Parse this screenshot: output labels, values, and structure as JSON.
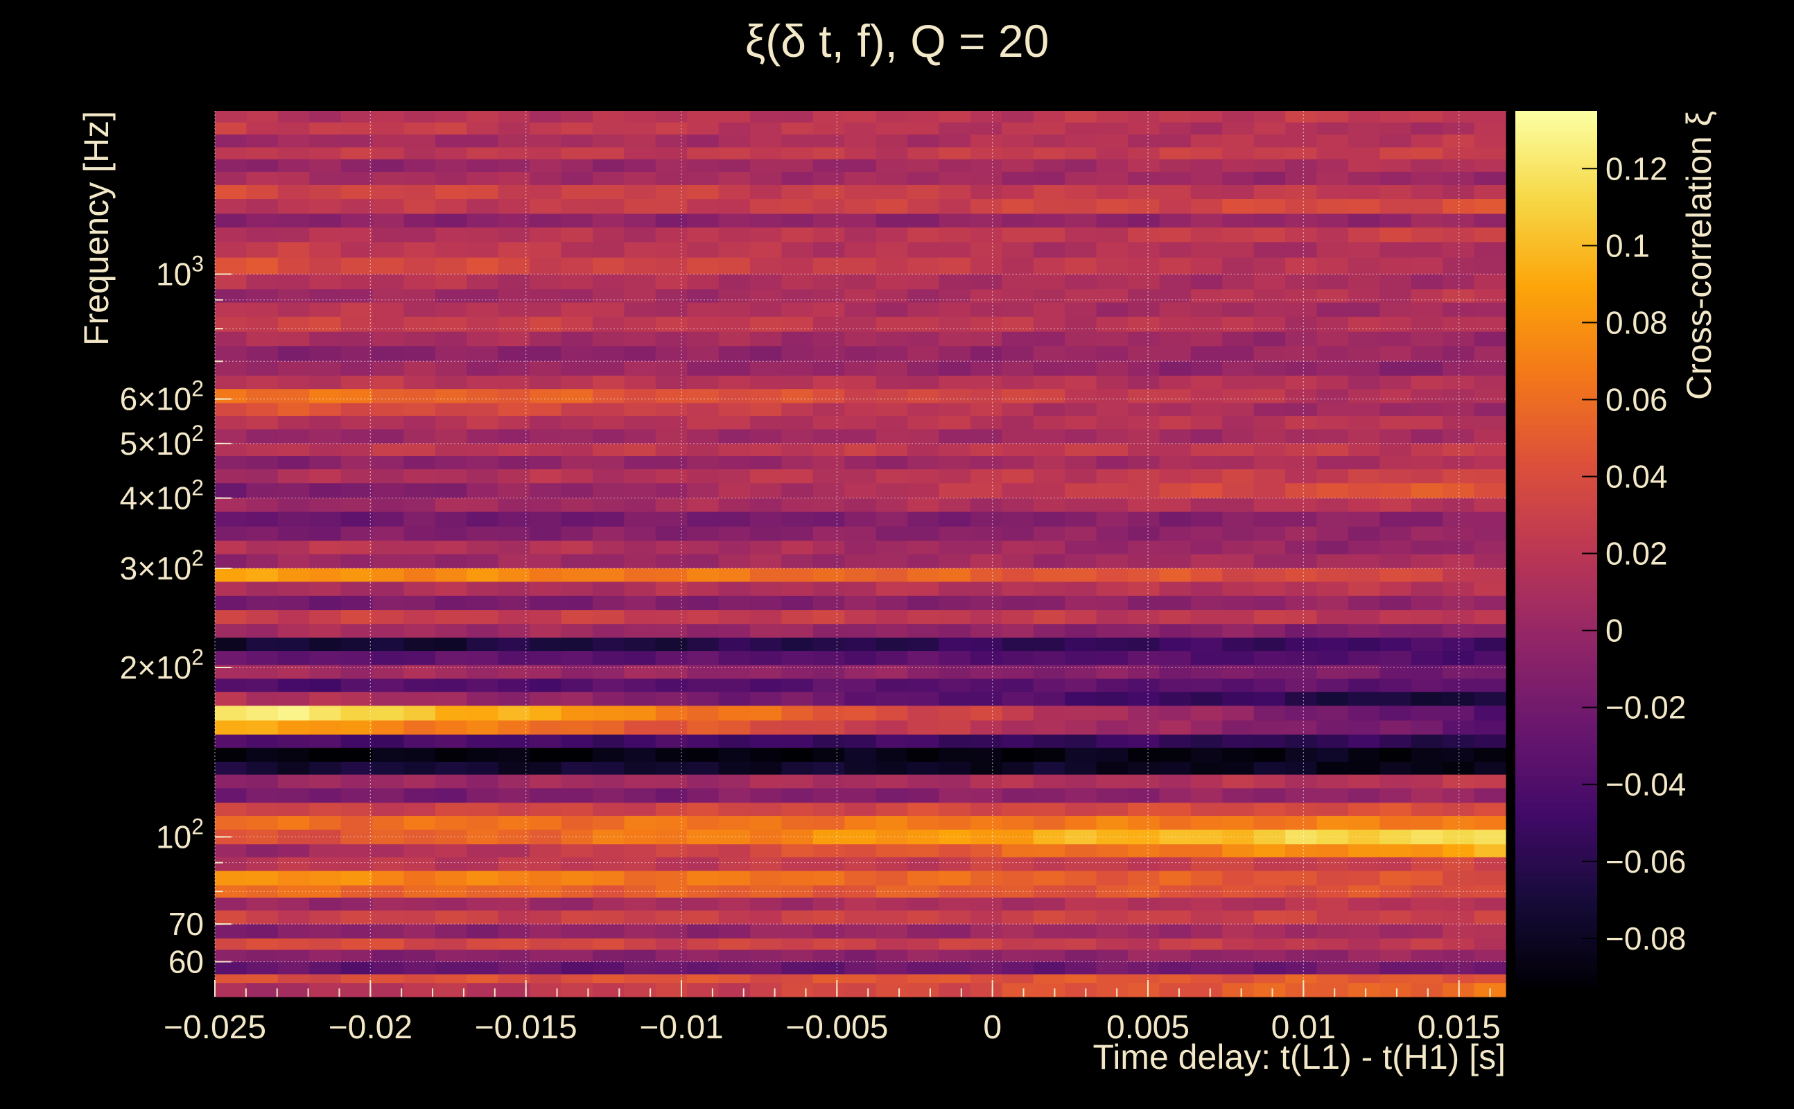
{
  "chart_data": {
    "type": "heatmap",
    "title": "ξ(δ t, f), Q = 20",
    "xlabel": "Time delay: t(L1) - t(H1) [s]",
    "ylabel": "Frequency [Hz]",
    "colorbar_label": "Cross-correlation ξ",
    "xlim": [
      -0.025,
      0.0165
    ],
    "ylim_hz": [
      52,
      1950
    ],
    "y_scale": "log",
    "z_range": [
      -0.093,
      0.135
    ],
    "grid": true,
    "x_ticks": [
      {
        "value": -0.025,
        "label": "−0.025"
      },
      {
        "value": -0.02,
        "label": "−0.02"
      },
      {
        "value": -0.015,
        "label": "−0.015"
      },
      {
        "value": -0.01,
        "label": "−0.01"
      },
      {
        "value": -0.005,
        "label": "−0.005"
      },
      {
        "value": 0,
        "label": "0"
      },
      {
        "value": 0.005,
        "label": "0.005"
      },
      {
        "value": 0.01,
        "label": "0.01"
      },
      {
        "value": 0.015,
        "label": "0.015"
      }
    ],
    "y_ticks": [
      {
        "value": 60,
        "base": "60",
        "exp": ""
      },
      {
        "value": 70,
        "base": "70",
        "exp": ""
      },
      {
        "value": 100,
        "base": "10",
        "exp": "2"
      },
      {
        "value": 200,
        "base": "2×10",
        "exp": "2"
      },
      {
        "value": 300,
        "base": "3×10",
        "exp": "2"
      },
      {
        "value": 400,
        "base": "4×10",
        "exp": "2"
      },
      {
        "value": 500,
        "base": "5×10",
        "exp": "2"
      },
      {
        "value": 600,
        "base": "6×10",
        "exp": "2"
      },
      {
        "value": 1000,
        "base": "10",
        "exp": "3"
      }
    ],
    "colorbar_ticks": [
      {
        "value": 0.12,
        "label": "0.12"
      },
      {
        "value": 0.1,
        "label": "0.1"
      },
      {
        "value": 0.08,
        "label": "0.08"
      },
      {
        "value": 0.06,
        "label": "0.06"
      },
      {
        "value": 0.04,
        "label": "0.04"
      },
      {
        "value": 0.02,
        "label": "0.02"
      },
      {
        "value": 0,
        "label": "0"
      },
      {
        "value": -0.02,
        "label": "−0.02"
      },
      {
        "value": -0.04,
        "label": "−0.04"
      },
      {
        "value": -0.06,
        "label": "−0.06"
      },
      {
        "value": -0.08,
        "label": "−0.08"
      }
    ],
    "n_time_bins": 41,
    "row_profiles": [
      {
        "f_low": 1860,
        "f_high": 1950,
        "start": 0.015,
        "end": 0.025
      },
      {
        "f_low": 1770,
        "f_high": 1860,
        "start": 0.028,
        "end": 0.012
      },
      {
        "f_low": 1680,
        "f_high": 1770,
        "start": 0.005,
        "end": 0.02
      },
      {
        "f_low": 1600,
        "f_high": 1680,
        "start": 0.022,
        "end": 0.028
      },
      {
        "f_low": 1520,
        "f_high": 1600,
        "start": -0.005,
        "end": 0.015
      },
      {
        "f_low": 1440,
        "f_high": 1520,
        "start": 0.01,
        "end": 0.002
      },
      {
        "f_low": 1360,
        "f_high": 1440,
        "start": 0.035,
        "end": 0.02
      },
      {
        "f_low": 1280,
        "f_high": 1360,
        "start": 0.02,
        "end": 0.04
      },
      {
        "f_low": 1210,
        "f_high": 1280,
        "start": -0.008,
        "end": 0.0
      },
      {
        "f_low": 1140,
        "f_high": 1210,
        "start": 0.012,
        "end": 0.03
      },
      {
        "f_low": 1070,
        "f_high": 1140,
        "start": 0.025,
        "end": 0.01
      },
      {
        "f_low": 1000,
        "f_high": 1070,
        "start": 0.04,
        "end": 0.015
      },
      {
        "f_low": 940,
        "f_high": 1000,
        "start": 0.018,
        "end": 0.008
      },
      {
        "f_low": 890,
        "f_high": 940,
        "start": 0.0,
        "end": 0.02
      },
      {
        "f_low": 840,
        "f_high": 890,
        "start": 0.02,
        "end": 0.005
      },
      {
        "f_low": 790,
        "f_high": 840,
        "start": 0.03,
        "end": 0.015
      },
      {
        "f_low": 745,
        "f_high": 790,
        "start": 0.01,
        "end": 0.002
      },
      {
        "f_low": 700,
        "f_high": 745,
        "start": -0.01,
        "end": 0.005
      },
      {
        "f_low": 660,
        "f_high": 700,
        "start": 0.005,
        "end": -0.005
      },
      {
        "f_low": 625,
        "f_high": 660,
        "start": 0.02,
        "end": 0.015
      },
      {
        "f_low": 590,
        "f_high": 625,
        "start": 0.065,
        "end": 0.01
      },
      {
        "f_low": 560,
        "f_high": 590,
        "start": 0.045,
        "end": 0.0
      },
      {
        "f_low": 530,
        "f_high": 560,
        "start": 0.015,
        "end": 0.02
      },
      {
        "f_low": 500,
        "f_high": 530,
        "start": 0.0,
        "end": 0.01
      },
      {
        "f_low": 475,
        "f_high": 500,
        "start": 0.02,
        "end": 0.025
      },
      {
        "f_low": 450,
        "f_high": 475,
        "start": -0.01,
        "end": 0.015
      },
      {
        "f_low": 425,
        "f_high": 450,
        "start": 0.01,
        "end": 0.03
      },
      {
        "f_low": 400,
        "f_high": 425,
        "start": -0.02,
        "end": 0.05
      },
      {
        "f_low": 378,
        "f_high": 400,
        "start": 0.0,
        "end": 0.02
      },
      {
        "f_low": 356,
        "f_high": 378,
        "start": -0.025,
        "end": -0.005
      },
      {
        "f_low": 336,
        "f_high": 356,
        "start": -0.015,
        "end": 0.0
      },
      {
        "f_low": 318,
        "f_high": 336,
        "start": 0.02,
        "end": -0.005
      },
      {
        "f_low": 300,
        "f_high": 318,
        "start": 0.0,
        "end": 0.01
      },
      {
        "f_low": 284,
        "f_high": 300,
        "start": 0.085,
        "end": 0.03
      },
      {
        "f_low": 268,
        "f_high": 284,
        "start": 0.01,
        "end": 0.02
      },
      {
        "f_low": 253,
        "f_high": 268,
        "start": -0.02,
        "end": 0.0
      },
      {
        "f_low": 239,
        "f_high": 253,
        "start": 0.03,
        "end": 0.02
      },
      {
        "f_low": 226,
        "f_high": 239,
        "start": 0.01,
        "end": -0.015
      },
      {
        "f_low": 214,
        "f_high": 226,
        "start": -0.075,
        "end": -0.045
      },
      {
        "f_low": 202,
        "f_high": 214,
        "start": -0.03,
        "end": -0.04
      },
      {
        "f_low": 191,
        "f_high": 202,
        "start": 0.01,
        "end": -0.02
      },
      {
        "f_low": 181,
        "f_high": 191,
        "start": -0.04,
        "end": -0.03
      },
      {
        "f_low": 171,
        "f_high": 181,
        "start": 0.02,
        "end": -0.075
      },
      {
        "f_low": 161,
        "f_high": 171,
        "start": 0.13,
        "end": -0.04
      },
      {
        "f_low": 152,
        "f_high": 161,
        "start": 0.09,
        "end": -0.03
      },
      {
        "f_low": 144,
        "f_high": 152,
        "start": -0.04,
        "end": -0.06
      },
      {
        "f_low": 136,
        "f_high": 144,
        "start": -0.09,
        "end": -0.085
      },
      {
        "f_low": 129,
        "f_high": 136,
        "start": -0.07,
        "end": -0.085
      },
      {
        "f_low": 122,
        "f_high": 129,
        "start": 0.0,
        "end": 0.02
      },
      {
        "f_low": 115,
        "f_high": 122,
        "start": -0.02,
        "end": 0.0
      },
      {
        "f_low": 109,
        "f_high": 115,
        "start": 0.03,
        "end": 0.04
      },
      {
        "f_low": 103,
        "f_high": 109,
        "start": 0.06,
        "end": 0.07
      },
      {
        "f_low": 97,
        "f_high": 103,
        "start": 0.04,
        "end": 0.12
      },
      {
        "f_low": 92,
        "f_high": 97,
        "start": 0.0,
        "end": 0.09
      },
      {
        "f_low": 87,
        "f_high": 92,
        "start": 0.02,
        "end": 0.03
      },
      {
        "f_low": 82,
        "f_high": 87,
        "start": 0.08,
        "end": 0.04
      },
      {
        "f_low": 78,
        "f_high": 82,
        "start": 0.06,
        "end": 0.04
      },
      {
        "f_low": 74,
        "f_high": 78,
        "start": 0.0,
        "end": 0.02
      },
      {
        "f_low": 70,
        "f_high": 74,
        "start": 0.03,
        "end": 0.03
      },
      {
        "f_low": 66,
        "f_high": 70,
        "start": -0.01,
        "end": 0.01
      },
      {
        "f_low": 63,
        "f_high": 66,
        "start": 0.04,
        "end": 0.02
      },
      {
        "f_low": 60,
        "f_high": 63,
        "start": -0.01,
        "end": 0.0
      },
      {
        "f_low": 57,
        "f_high": 60,
        "start": -0.03,
        "end": -0.02
      },
      {
        "f_low": 55,
        "f_high": 57,
        "start": 0.04,
        "end": 0.05
      },
      {
        "f_low": 52,
        "f_high": 55,
        "start": 0.01,
        "end": 0.06
      }
    ]
  },
  "colors": {
    "background": "#000000",
    "text": "#f3e8c8",
    "grid": "#ffffff",
    "colormap": "inferno"
  }
}
